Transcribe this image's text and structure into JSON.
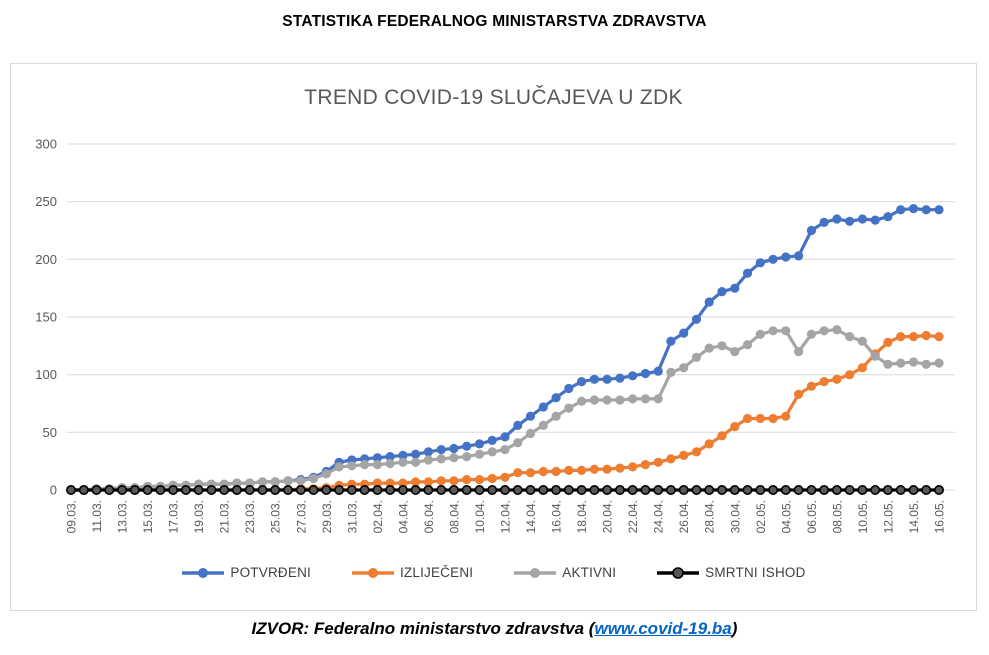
{
  "page": {
    "title": "STATISTIKA FEDERALNOG MINISTARSTVA ZDRAVSTVA",
    "source_prefix": "IZVOR: Federalno ministarstvo zdravstva (",
    "source_link": "www.covid-19.ba",
    "source_suffix": ")"
  },
  "chart_data": {
    "type": "line",
    "title": "TREND COVID-19 SLUČAJEVA U ZDK",
    "xlabel": "",
    "ylabel": "",
    "ylim": [
      0,
      300
    ],
    "yticks": [
      0,
      50,
      100,
      150,
      200,
      250,
      300
    ],
    "grid": true,
    "legend_position": "bottom",
    "x_label_every": 2,
    "x_tick_labels": [
      "09.03.",
      "11.03.",
      "13.03.",
      "15.03.",
      "17.03.",
      "19.03.",
      "21.03.",
      "23.03.",
      "25.03.",
      "27.03.",
      "29.03.",
      "31.03.",
      "02.04.",
      "04.04.",
      "06.04.",
      "08.04.",
      "10.04.",
      "12.04.",
      "14.04.",
      "16.04.",
      "18.04.",
      "20.04.",
      "22.04.",
      "24.04.",
      "26.04.",
      "28.04.",
      "30.04.",
      "02.05.",
      "04.05.",
      "06.05.",
      "08.05.",
      "10.05.",
      "12.05.",
      "14.05.",
      "16.05."
    ],
    "categories": [
      "09.03.",
      "10.03.",
      "11.03.",
      "12.03.",
      "13.03.",
      "14.03.",
      "15.03.",
      "16.03.",
      "17.03.",
      "18.03.",
      "19.03.",
      "20.03.",
      "21.03.",
      "22.03.",
      "23.03.",
      "24.03.",
      "25.03.",
      "26.03.",
      "27.03.",
      "28.03.",
      "29.03.",
      "30.03.",
      "31.03.",
      "01.04.",
      "02.04.",
      "03.04.",
      "04.04.",
      "05.04.",
      "06.04.",
      "07.04.",
      "08.04.",
      "09.04.",
      "10.04.",
      "11.04.",
      "12.04.",
      "13.04.",
      "14.04.",
      "15.04.",
      "16.04.",
      "17.04.",
      "18.04.",
      "19.04.",
      "20.04.",
      "21.04.",
      "22.04.",
      "23.04.",
      "24.04.",
      "25.04.",
      "26.04.",
      "27.04.",
      "28.04.",
      "29.04.",
      "30.04.",
      "01.05.",
      "02.05.",
      "03.05.",
      "04.05.",
      "05.05.",
      "06.05.",
      "07.05.",
      "08.05.",
      "09.05.",
      "10.05.",
      "11.05.",
      "12.05.",
      "13.05.",
      "14.05.",
      "15.05.",
      "16.05."
    ],
    "series": [
      {
        "name": "POTVRĐENI",
        "color": "#4472C4",
        "values": [
          0,
          0,
          1,
          1,
          2,
          2,
          3,
          3,
          4,
          4,
          5,
          5,
          5,
          6,
          6,
          7,
          7,
          8,
          9,
          11,
          16,
          24,
          26,
          27,
          28,
          29,
          30,
          31,
          33,
          35,
          36,
          38,
          40,
          43,
          46,
          56,
          64,
          72,
          80,
          88,
          94,
          96,
          96,
          97,
          99,
          101,
          103,
          129,
          136,
          148,
          163,
          172,
          175,
          188,
          197,
          200,
          202,
          203,
          225,
          232,
          235,
          233,
          235,
          234,
          237,
          243,
          244,
          243,
          243
        ]
      },
      {
        "name": "IZLIJEČENI",
        "color": "#ED7D31",
        "values": [
          0,
          0,
          0,
          0,
          0,
          0,
          0,
          0,
          0,
          0,
          0,
          0,
          0,
          0,
          0,
          0,
          0,
          0,
          1,
          1,
          2,
          4,
          5,
          5,
          6,
          6,
          6,
          7,
          7,
          8,
          8,
          9,
          9,
          10,
          11,
          15,
          15,
          16,
          16,
          17,
          17,
          18,
          18,
          19,
          20,
          22,
          24,
          27,
          30,
          33,
          40,
          47,
          55,
          62,
          62,
          62,
          64,
          83,
          90,
          94,
          96,
          100,
          106,
          118,
          128,
          133,
          133,
          134,
          133
        ]
      },
      {
        "name": "AKTIVNI",
        "color": "#A5A5A5",
        "values": [
          0,
          0,
          1,
          1,
          2,
          2,
          3,
          3,
          4,
          4,
          5,
          5,
          5,
          6,
          6,
          7,
          7,
          8,
          8,
          10,
          14,
          20,
          21,
          22,
          22,
          23,
          24,
          24,
          26,
          27,
          28,
          29,
          31,
          33,
          35,
          41,
          49,
          56,
          64,
          71,
          77,
          78,
          78,
          78,
          79,
          79,
          79,
          102,
          106,
          115,
          123,
          125,
          120,
          126,
          135,
          138,
          138,
          120,
          135,
          138,
          139,
          133,
          129,
          116,
          109,
          110,
          111,
          109,
          110
        ]
      },
      {
        "name": "SMRTNI ISHOD",
        "color": "#000000",
        "marker_fill": "#595959",
        "marker_stroke": "#000000",
        "values": [
          0,
          0,
          0,
          0,
          0,
          0,
          0,
          0,
          0,
          0,
          0,
          0,
          0,
          0,
          0,
          0,
          0,
          0,
          0,
          0,
          0,
          0,
          0,
          0,
          0,
          0,
          0,
          0,
          0,
          0,
          0,
          0,
          0,
          0,
          0,
          0,
          0,
          0,
          0,
          0,
          0,
          0,
          0,
          0,
          0,
          0,
          0,
          0,
          0,
          0,
          0,
          0,
          0,
          0,
          0,
          0,
          0,
          0,
          0,
          0,
          0,
          0,
          0,
          0,
          0,
          0,
          0,
          0,
          0
        ]
      }
    ]
  }
}
